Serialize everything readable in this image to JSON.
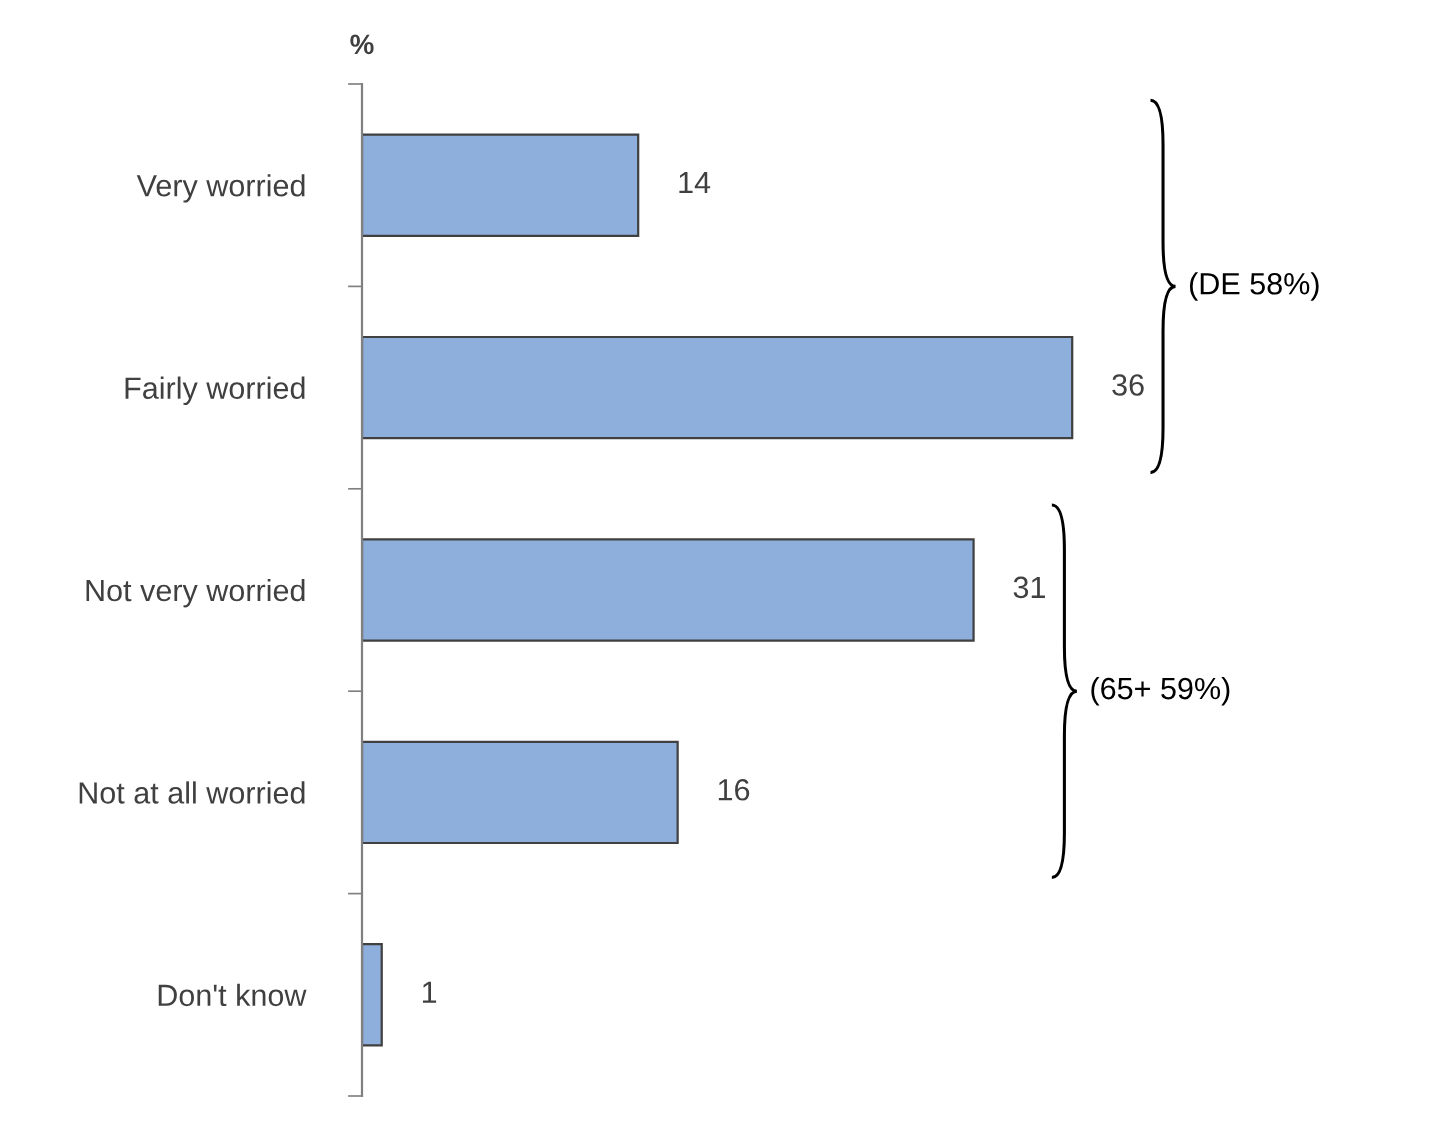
{
  "chart_data": {
    "type": "bar",
    "orientation": "horizontal",
    "ylabel": "%",
    "categories": [
      "Very worried",
      "Fairly worried",
      "Not very worried",
      "Not at all worried",
      "Don't know"
    ],
    "values": [
      14,
      36,
      31,
      16,
      1
    ],
    "color": "#8eaedb",
    "data_labels": true,
    "grid": false,
    "legend": false,
    "tick_labels": "y",
    "annotations": [
      "(DE 58%)",
      "(65+ 59%)"
    ]
  }
}
